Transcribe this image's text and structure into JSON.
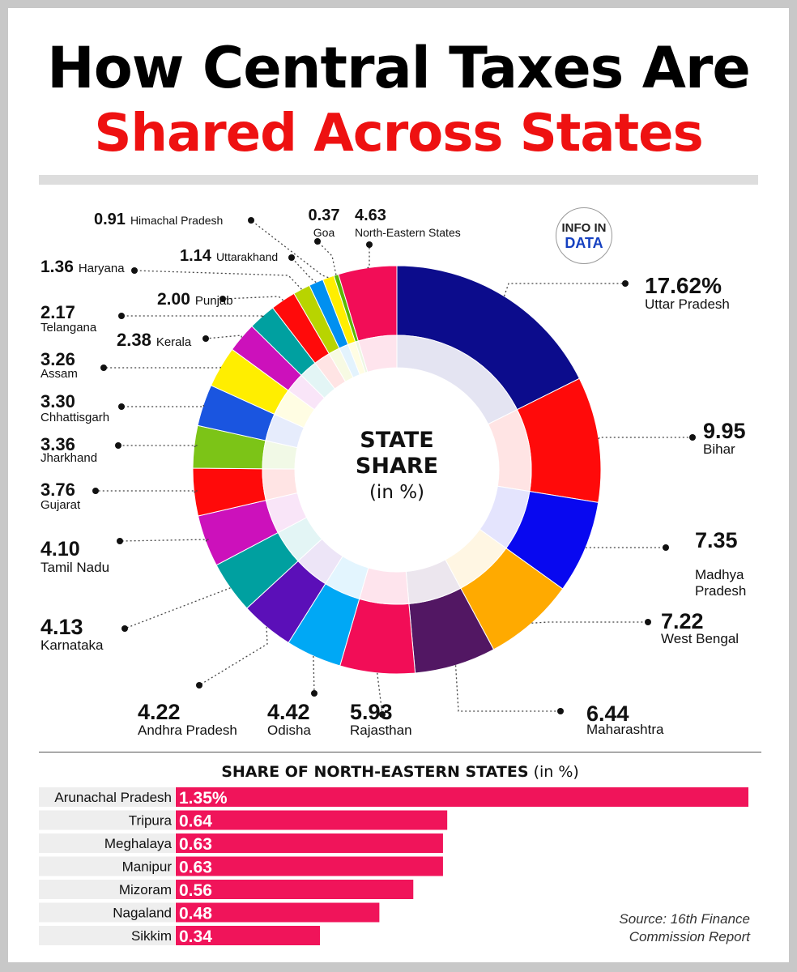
{
  "title": {
    "line1": "How Central Taxes Are",
    "line2": "Shared Across States"
  },
  "logo": {
    "line1": "INFO IN",
    "line2": "DATA"
  },
  "center_label": {
    "line1": "STATE SHARE",
    "line2": "(in %)"
  },
  "source": {
    "line1": "Source: 16th Finance",
    "line2": "Commission Report"
  },
  "colors": {
    "accent_red": "#ee1111",
    "bar_pink": "#f0145a"
  },
  "chart_data": [
    {
      "type": "pie",
      "title": "STATE SHARE (in %)",
      "slices": [
        {
          "name": "Uttar Pradesh",
          "value": 17.62,
          "value_label": "17.62%",
          "color": "#0c0c8c"
        },
        {
          "name": "Bihar",
          "value": 9.95,
          "value_label": "9.95",
          "color": "#ff0a0a"
        },
        {
          "name": "Madhya Pradesh",
          "value": 7.35,
          "value_label": "7.35",
          "color": "#0808f0"
        },
        {
          "name": "West Bengal",
          "value": 7.22,
          "value_label": "7.22",
          "color": "#ffaa00"
        },
        {
          "name": "Maharashtra",
          "value": 6.44,
          "value_label": "6.44",
          "color": "#521763"
        },
        {
          "name": "Rajasthan",
          "value": 5.93,
          "value_label": "5.93",
          "color": "#f20d57"
        },
        {
          "name": "Odisha",
          "value": 4.42,
          "value_label": "4.42",
          "color": "#00a8f5"
        },
        {
          "name": "Andhra Pradesh",
          "value": 4.22,
          "value_label": "4.22",
          "color": "#5b0fb8"
        },
        {
          "name": "Karnataka",
          "value": 4.13,
          "value_label": "4.13",
          "color": "#00a0a0"
        },
        {
          "name": "Tamil Nadu",
          "value": 4.1,
          "value_label": "4.10",
          "color": "#cc11bb"
        },
        {
          "name": "Gujarat",
          "value": 3.76,
          "value_label": "3.76",
          "color": "#ff0a0a"
        },
        {
          "name": "Jharkhand",
          "value": 3.36,
          "value_label": "3.36",
          "color": "#7cc417"
        },
        {
          "name": "Chhattisgarh",
          "value": 3.3,
          "value_label": "3.30",
          "color": "#1a55e0"
        },
        {
          "name": "Assam",
          "value": 3.26,
          "value_label": "3.26",
          "color": "#ffee00"
        },
        {
          "name": "Kerala",
          "value": 2.38,
          "value_label": "2.38",
          "color": "#cc11bb"
        },
        {
          "name": "Telangana",
          "value": 2.17,
          "value_label": "2.17",
          "color": "#00a0a0"
        },
        {
          "name": "Punjab",
          "value": 2.0,
          "value_label": "2.00",
          "color": "#ff0a0a"
        },
        {
          "name": "Haryana",
          "value": 1.36,
          "value_label": "1.36",
          "color": "#b8d400"
        },
        {
          "name": "Uttarakhand",
          "value": 1.14,
          "value_label": "1.14",
          "color": "#0090f0"
        },
        {
          "name": "Himachal Pradesh",
          "value": 0.91,
          "value_label": "0.91",
          "color": "#ffee00"
        },
        {
          "name": "Goa",
          "value": 0.37,
          "value_label": "0.37",
          "color": "#59b800"
        },
        {
          "name": "North-Eastern States",
          "value": 4.63,
          "value_label": "4.63",
          "color": "#f20d57"
        }
      ]
    },
    {
      "type": "bar",
      "orientation": "horizontal",
      "title": "SHARE OF NORTH-EASTERN STATES",
      "title_unit": "(in %)",
      "categories": [
        "Arunachal Pradesh",
        "Tripura",
        "Meghalaya",
        "Manipur",
        "Mizoram",
        "Nagaland",
        "Sikkim"
      ],
      "values": [
        1.35,
        0.64,
        0.63,
        0.63,
        0.56,
        0.48,
        0.34
      ],
      "value_labels": [
        "1.35%",
        "0.64",
        "0.63",
        "0.63",
        "0.56",
        "0.48",
        "0.34"
      ],
      "xlim": [
        0,
        1.35
      ]
    }
  ]
}
